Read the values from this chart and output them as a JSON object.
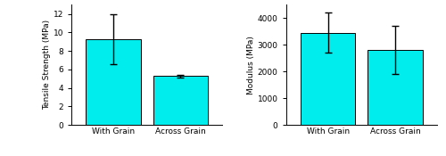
{
  "left": {
    "categories": [
      "With Grain",
      "Across Grain"
    ],
    "values": [
      9.3,
      5.3
    ],
    "yerr": [
      2.7,
      0.15
    ],
    "ylabel": "Tensile Strength (MPa)",
    "ylim": [
      0,
      13
    ],
    "yticks": [
      0,
      2,
      4,
      6,
      8,
      10,
      12
    ]
  },
  "right": {
    "categories": [
      "With Grain",
      "Across Grain"
    ],
    "values": [
      3450,
      2800
    ],
    "yerr": [
      750,
      900
    ],
    "ylabel": "Modulus (MPa)",
    "ylim": [
      0,
      4500
    ],
    "yticks": [
      0,
      1000,
      2000,
      3000,
      4000
    ]
  },
  "bar_color": "#00EDED",
  "bar_edgecolor": "#000000",
  "error_color": "#000000",
  "bar_width": 0.65,
  "x_positions": [
    0,
    0.8
  ],
  "xlim": [
    -0.5,
    1.3
  ],
  "background_color": "#ffffff"
}
